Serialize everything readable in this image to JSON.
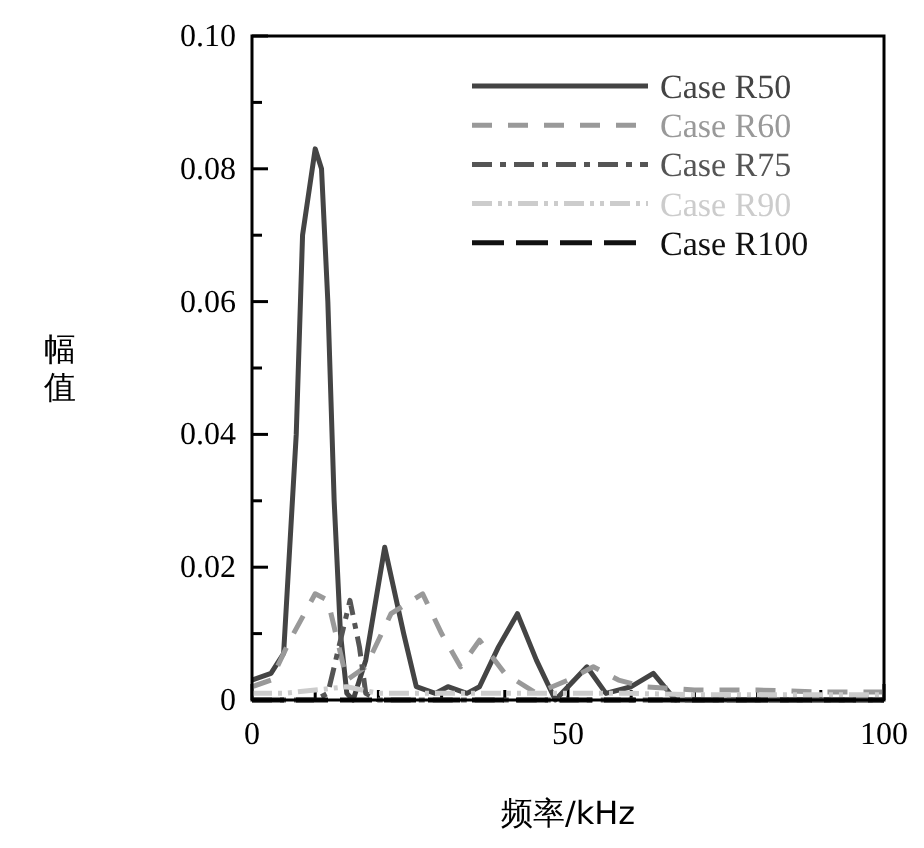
{
  "chart_data": {
    "type": "line",
    "xlabel": "频率/kHz",
    "ylabel": "幅值",
    "xlim": [
      0,
      100
    ],
    "ylim": [
      0,
      0.1
    ],
    "xticks": [
      0,
      {
        "value": 10,
        "label": null
      },
      {
        "value": 20,
        "label": null
      },
      {
        "value": 30,
        "label": null
      },
      {
        "value": 40,
        "label": null
      },
      50,
      {
        "value": 60,
        "label": null
      },
      {
        "value": 70,
        "label": null
      },
      {
        "value": 80,
        "label": null
      },
      {
        "value": 90,
        "label": null
      },
      100
    ],
    "yticks": [
      0,
      {
        "value": 0.01,
        "label": null
      },
      0.02,
      {
        "value": 0.03,
        "label": null
      },
      0.04,
      {
        "value": 0.05,
        "label": null
      },
      0.06,
      {
        "value": 0.07,
        "label": null
      },
      0.08,
      {
        "value": 0.09,
        "label": null
      },
      {
        "value": 0.1,
        "label": "0.10"
      }
    ],
    "grid": false,
    "legend": "top right",
    "series": [
      {
        "name": "Case R50",
        "color": "#444444",
        "line_style": "solid",
        "x": [
          0,
          3,
          5,
          7,
          8,
          10,
          11,
          12,
          13,
          14,
          15,
          16,
          18,
          21,
          24,
          26,
          29,
          31,
          34,
          36,
          39,
          42,
          45,
          48,
          50,
          53,
          56,
          60,
          63.5,
          67,
          75,
          85,
          100
        ],
        "values": [
          0.003,
          0.004,
          0.007,
          0.04,
          0.07,
          0.083,
          0.08,
          0.06,
          0.03,
          0.01,
          0.001,
          0.0,
          0.006,
          0.023,
          0.01,
          0.002,
          0.001,
          0.002,
          0.001,
          0.002,
          0.008,
          0.013,
          0.006,
          0.0,
          0.002,
          0.005,
          0.001,
          0.002,
          0.004,
          0.0,
          0.0,
          0.0,
          0.0
        ]
      },
      {
        "name": "Case R60",
        "color": "#999999",
        "line_style": "dashed",
        "x": [
          0,
          3,
          6,
          10,
          12,
          15,
          18,
          22,
          27,
          30,
          33,
          36,
          40,
          45,
          50,
          54,
          58,
          62,
          70,
          80,
          90,
          100
        ],
        "values": [
          0.002,
          0.003,
          0.009,
          0.016,
          0.015,
          0.003,
          0.005,
          0.013,
          0.016,
          0.01,
          0.005,
          0.009,
          0.004,
          0.001,
          0.003,
          0.005,
          0.003,
          0.002,
          0.0015,
          0.0015,
          0.0012,
          0.0012
        ]
      },
      {
        "name": "Case R75",
        "color": "#555555",
        "line_style": "dashdot",
        "x": [
          0,
          5,
          10,
          12,
          14,
          15.5,
          17,
          18,
          20,
          30,
          50,
          70,
          100
        ],
        "values": [
          0.0,
          0.0,
          0.0,
          0.001,
          0.009,
          0.015,
          0.008,
          0.001,
          0.0,
          0.0,
          0.0,
          0.0,
          0.0
        ]
      },
      {
        "name": "Case R90",
        "color": "#cccccc",
        "line_style": "dashdotdot",
        "x": [
          0,
          5,
          10,
          15,
          20,
          30,
          40,
          50,
          60,
          70,
          80,
          90,
          100
        ],
        "values": [
          0.001,
          0.001,
          0.0015,
          0.002,
          0.001,
          0.001,
          0.001,
          0.001,
          0.001,
          0.0008,
          0.0008,
          0.0008,
          0.0008
        ]
      },
      {
        "name": "Case R100",
        "color": "#111111",
        "line_style": "longdash",
        "x": [
          0,
          10,
          20,
          30,
          40,
          50,
          60,
          70,
          80,
          90,
          100
        ],
        "values": [
          0.0,
          0.0,
          0.0,
          0.0,
          0.0,
          0.0,
          0.0,
          0.0,
          0.0,
          0.0,
          0.0
        ]
      }
    ]
  }
}
